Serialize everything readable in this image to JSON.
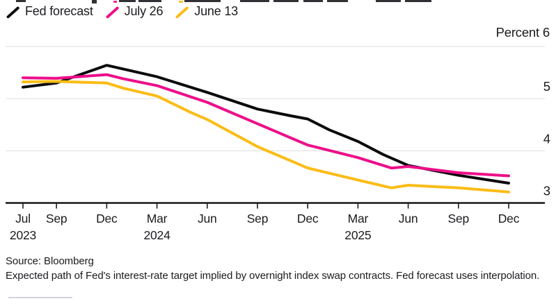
{
  "legend": {
    "items": [
      {
        "label": "Fed forecast",
        "color": "#0b0b0d"
      },
      {
        "label": "July 26",
        "color": "#ed0e89"
      },
      {
        "label": "June 13",
        "color": "#fbbc16"
      }
    ]
  },
  "source_line": "Source: Bloomberg",
  "footnote": "Expected path of Fed's interest-rate target implied by overnight index swap contracts. Fed forecast uses interpolation.",
  "chart_data": {
    "type": "line",
    "title": "",
    "x_unit": "months since Jul 2023",
    "x_range_months": [
      0,
      29
    ],
    "ylim": [
      3,
      6
    ],
    "grid": "horizontal",
    "legend_position": "top-left",
    "y_axis": {
      "unit_label": "Percent",
      "ticks": [
        {
          "value": 6,
          "label": "Percent 6"
        },
        {
          "value": 5,
          "label": "5"
        },
        {
          "value": 4,
          "label": "4"
        },
        {
          "value": 3,
          "label": "3"
        }
      ]
    },
    "x_ticks": [
      {
        "m": 0,
        "label": "Jul",
        "year": "2023"
      },
      {
        "m": 2,
        "label": "Sep"
      },
      {
        "m": 5,
        "label": "Dec"
      },
      {
        "m": 8,
        "label": "Mar",
        "year": "2024"
      },
      {
        "m": 11,
        "label": "Jun"
      },
      {
        "m": 14,
        "label": "Sep"
      },
      {
        "m": 17,
        "label": "Dec"
      },
      {
        "m": 20,
        "label": "Mar",
        "year": "2025"
      },
      {
        "m": 23,
        "label": "Jun"
      },
      {
        "m": 26,
        "label": "Sep"
      },
      {
        "m": 29,
        "label": "Dec"
      }
    ],
    "series": [
      {
        "name": "Fed forecast",
        "color": "#0b0b0d",
        "points": [
          [
            0,
            5.22
          ],
          [
            2,
            5.3
          ],
          [
            5,
            5.64
          ],
          [
            8,
            5.42
          ],
          [
            11,
            5.12
          ],
          [
            14,
            4.8
          ],
          [
            16,
            4.67
          ],
          [
            17,
            4.61
          ],
          [
            18.3,
            4.4
          ],
          [
            20,
            4.18
          ],
          [
            21.5,
            3.93
          ],
          [
            23,
            3.72
          ],
          [
            26,
            3.53
          ],
          [
            29,
            3.38
          ]
        ]
      },
      {
        "name": "July 26",
        "color": "#ed0e89",
        "points": [
          [
            0,
            5.4
          ],
          [
            2,
            5.39
          ],
          [
            5,
            5.46
          ],
          [
            6,
            5.38
          ],
          [
            8,
            5.25
          ],
          [
            11,
            4.93
          ],
          [
            14,
            4.52
          ],
          [
            17,
            4.11
          ],
          [
            20,
            3.87
          ],
          [
            22,
            3.67
          ],
          [
            23,
            3.7
          ],
          [
            26,
            3.58
          ],
          [
            29,
            3.52
          ]
        ]
      },
      {
        "name": "June 13",
        "color": "#fbbc16",
        "points": [
          [
            0,
            5.32
          ],
          [
            2,
            5.33
          ],
          [
            5,
            5.3
          ],
          [
            6,
            5.2
          ],
          [
            8,
            5.05
          ],
          [
            10,
            4.74
          ],
          [
            11,
            4.6
          ],
          [
            14,
            4.08
          ],
          [
            17,
            3.67
          ],
          [
            20,
            3.44
          ],
          [
            22,
            3.29
          ],
          [
            23,
            3.34
          ],
          [
            26,
            3.29
          ],
          [
            29,
            3.21
          ]
        ]
      }
    ]
  }
}
